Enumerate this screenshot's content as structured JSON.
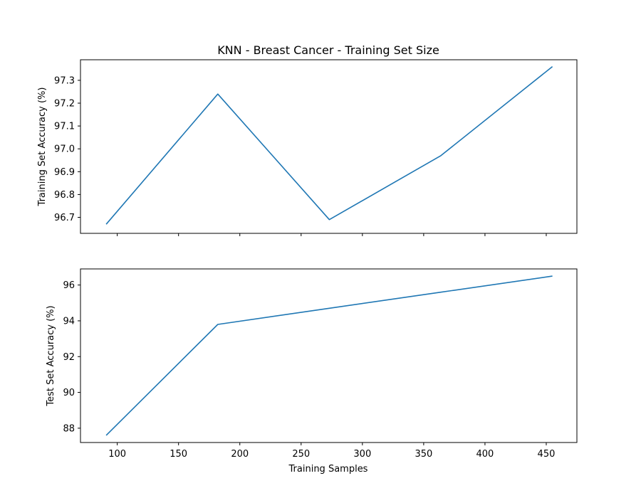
{
  "chart_data": {
    "type": "line",
    "title": "KNN - Breast Cancer - Training Set Size",
    "xlabel": "Training Samples",
    "xlim": [
      70,
      475
    ],
    "xticks": [
      100,
      150,
      200,
      250,
      300,
      350,
      400,
      450
    ],
    "xtick_labels": [
      "100",
      "150",
      "200",
      "250",
      "300",
      "350",
      "400",
      "450"
    ],
    "subplots": [
      {
        "ylabel": "Training Set Accuracy (%)",
        "ylim": [
          96.63,
          97.39
        ],
        "yticks": [
          96.7,
          96.8,
          96.9,
          97.0,
          97.1,
          97.2,
          97.3
        ],
        "ytick_labels": [
          "96.7",
          "96.8",
          "96.9",
          "97.0",
          "97.1",
          "97.2",
          "97.3"
        ],
        "series": [
          {
            "x": [
              91,
              182,
              273,
              364,
              455
            ],
            "y": [
              96.67,
              97.24,
              96.69,
              96.97,
              97.36
            ]
          }
        ]
      },
      {
        "ylabel": "Test Set Accuracy (%)",
        "ylim": [
          87.2,
          96.9
        ],
        "yticks": [
          88,
          90,
          92,
          94,
          96
        ],
        "ytick_labels": [
          "88",
          "90",
          "92",
          "94",
          "96"
        ],
        "series": [
          {
            "x": [
              91,
              182,
              273,
              364,
              455
            ],
            "y": [
              87.6,
              93.8,
              94.7,
              95.6,
              96.5
            ]
          }
        ]
      }
    ],
    "colors": {
      "series": "#1f77b4"
    },
    "grid": false,
    "legend": "none"
  }
}
